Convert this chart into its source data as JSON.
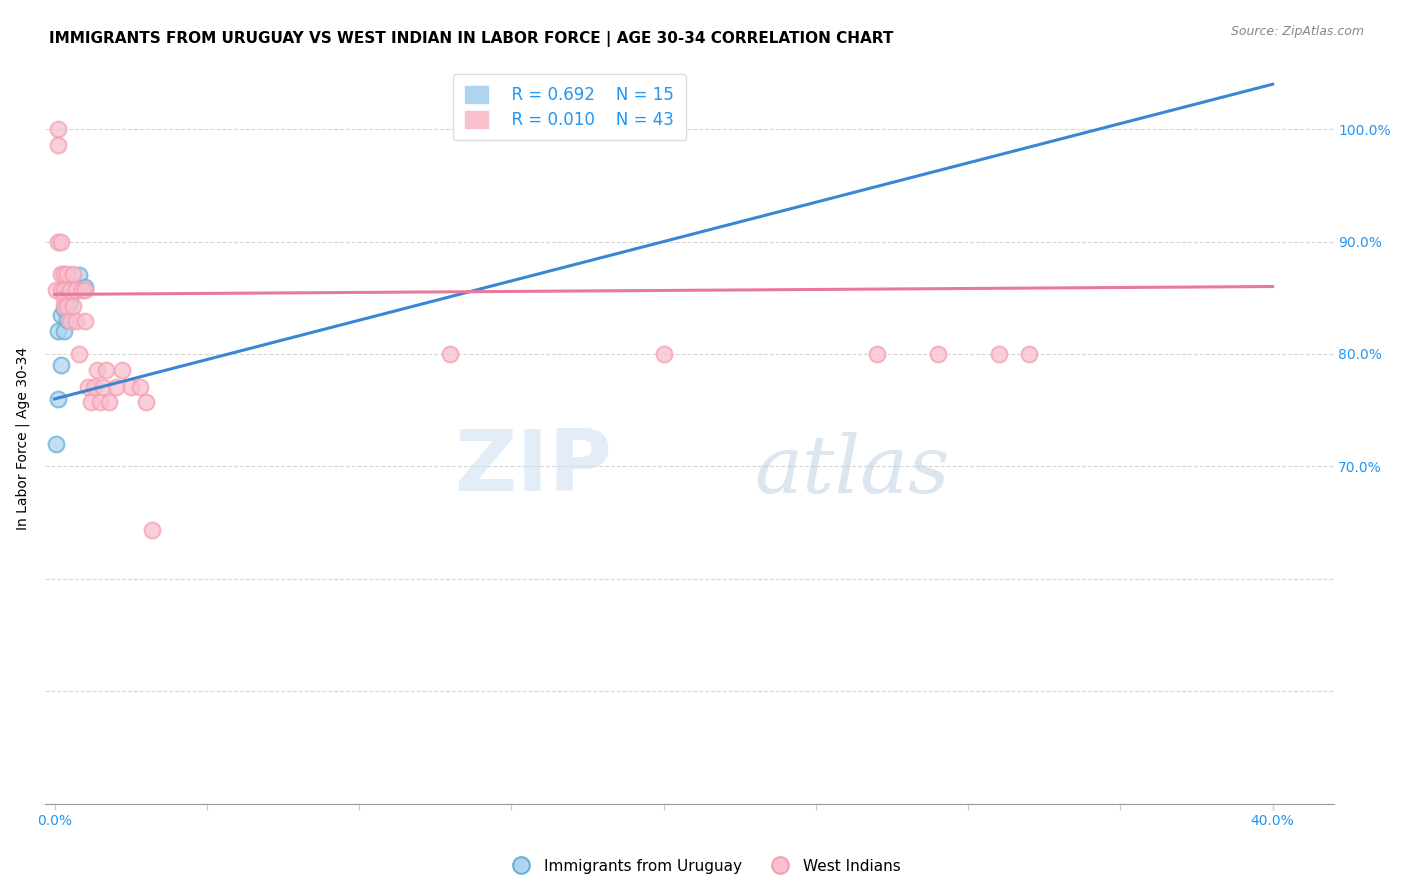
{
  "title": "IMMIGRANTS FROM URUGUAY VS WEST INDIAN IN LABOR FORCE | AGE 30-34 CORRELATION CHART",
  "source": "Source: ZipAtlas.com",
  "ylabel": "In Labor Force | Age 30-34",
  "xlim": [
    -0.003,
    0.42
  ],
  "ylim": [
    0.4,
    1.05
  ],
  "legend_r1": "R = 0.692",
  "legend_n1": "N = 15",
  "legend_r2": "R = 0.010",
  "legend_n2": "N = 43",
  "blue_color": "#6baed6",
  "pink_color": "#f4a0b0",
  "blue_line_color": "#3a86d4",
  "pink_line_color": "#e87a99",
  "watermark_zip": "ZIP",
  "watermark_atlas": "atlas",
  "blue_x": [
    0.0005,
    0.001,
    0.001,
    0.002,
    0.002,
    0.003,
    0.003,
    0.004,
    0.004,
    0.005,
    0.005,
    0.006,
    0.007,
    0.008,
    0.01
  ],
  "blue_y": [
    0.72,
    0.76,
    0.82,
    0.79,
    0.835,
    0.82,
    0.84,
    0.83,
    0.85,
    0.845,
    0.855,
    0.855,
    0.86,
    0.87,
    0.86
  ],
  "pink_x": [
    0.0005,
    0.001,
    0.001,
    0.001,
    0.002,
    0.002,
    0.002,
    0.003,
    0.003,
    0.003,
    0.003,
    0.004,
    0.004,
    0.005,
    0.005,
    0.006,
    0.006,
    0.007,
    0.007,
    0.008,
    0.009,
    0.01,
    0.01,
    0.011,
    0.012,
    0.013,
    0.014,
    0.015,
    0.016,
    0.017,
    0.018,
    0.02,
    0.022,
    0.025,
    0.028,
    0.03,
    0.032,
    0.13,
    0.2,
    0.27,
    0.29,
    0.31,
    0.32
  ],
  "pink_y": [
    0.857,
    1.0,
    0.986,
    0.9,
    0.9,
    0.871,
    0.857,
    0.871,
    0.857,
    0.85,
    0.843,
    0.871,
    0.843,
    0.857,
    0.829,
    0.871,
    0.843,
    0.857,
    0.829,
    0.8,
    0.857,
    0.857,
    0.829,
    0.771,
    0.757,
    0.771,
    0.786,
    0.757,
    0.771,
    0.786,
    0.757,
    0.771,
    0.786,
    0.771,
    0.771,
    0.757,
    0.643,
    0.8,
    0.8,
    0.8,
    0.8,
    0.8,
    0.8
  ],
  "blue_line_x": [
    0.0,
    0.4
  ],
  "blue_line_y": [
    0.76,
    1.04
  ],
  "pink_line_x": [
    0.0,
    0.4
  ],
  "pink_line_y": [
    0.853,
    0.86
  ],
  "title_fontsize": 11,
  "axis_label_fontsize": 10,
  "tick_fontsize": 10,
  "xtick_positions": [
    0.0,
    0.05,
    0.1,
    0.15,
    0.2,
    0.25,
    0.3,
    0.35,
    0.4
  ],
  "xtick_labels": [
    "0.0%",
    "",
    "",
    "",
    "",
    "",
    "",
    "",
    "40.0%"
  ],
  "ytick_positions": [
    0.4,
    0.5,
    0.6,
    0.7,
    0.8,
    0.9,
    1.0
  ],
  "ytick_labels_right": [
    "",
    "",
    "",
    "70.0%",
    "80.0%",
    "90.0%",
    "100.0%"
  ]
}
